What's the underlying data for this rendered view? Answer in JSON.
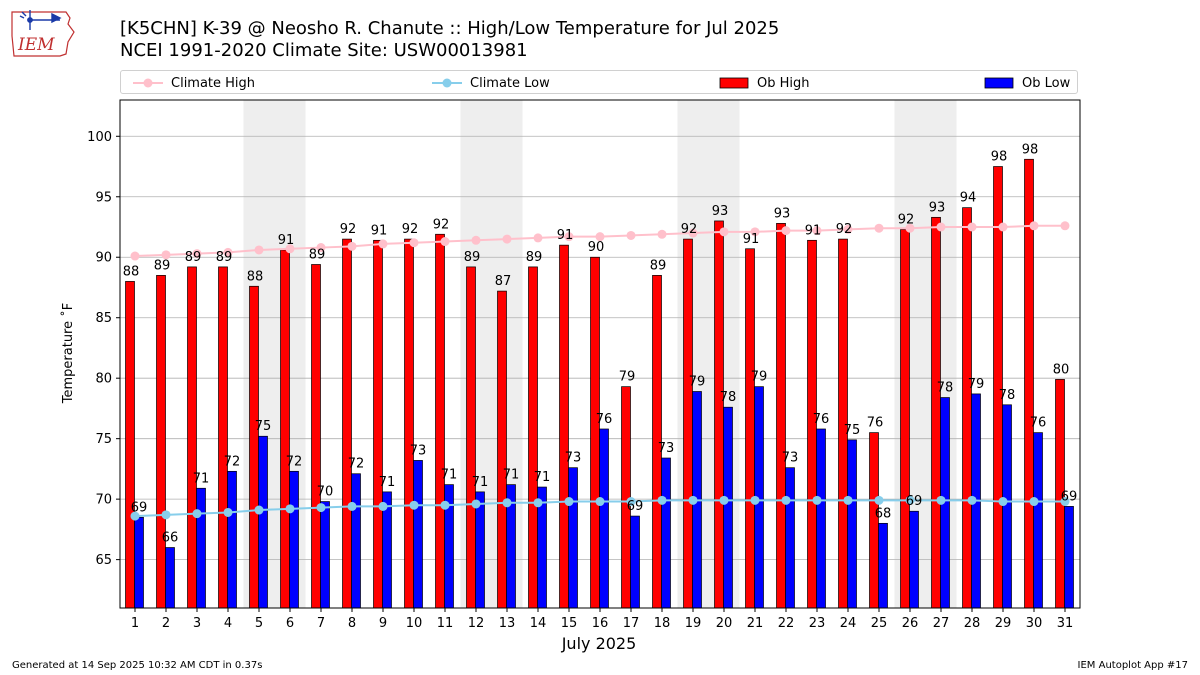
{
  "header": {
    "logo_text": "IEM",
    "title_line1": "[K5CHN] K-39 @ Neosho R. Chanute :: High/Low Temperature for Jul 2025",
    "title_line2": "NCEI 1991-2020 Climate Site: USW00013981"
  },
  "footer": {
    "left": "Generated at 14 Sep 2025 10:32 AM CDT in 0.37s",
    "right": "IEM Autoplot App #17"
  },
  "colors": {
    "ob_high": "#ff0000",
    "ob_low": "#0000ff",
    "climate_high": "#ffc0cb",
    "climate_low": "#87ceeb",
    "weekend_band": "#eeeeee",
    "grid": "#b0b0b0"
  },
  "chart_data": {
    "type": "bar",
    "title": "[K5CHN] K-39 @ Neosho R. Chanute :: High/Low Temperature for Jul 2025",
    "subtitle": "NCEI 1991-2020 Climate Site: USW00013981",
    "xlabel": "July 2025",
    "ylabel": "Temperature ˚F",
    "ylim": [
      61,
      103
    ],
    "yticks": [
      65,
      70,
      75,
      80,
      85,
      90,
      95,
      100
    ],
    "grid": "horizontal",
    "legend_position": "top",
    "categories": [
      "1",
      "2",
      "3",
      "4",
      "5",
      "6",
      "7",
      "8",
      "9",
      "10",
      "11",
      "12",
      "13",
      "14",
      "15",
      "16",
      "17",
      "18",
      "19",
      "20",
      "21",
      "22",
      "23",
      "24",
      "25",
      "26",
      "27",
      "28",
      "29",
      "30",
      "31"
    ],
    "shaded_days": [
      [
        5,
        6
      ],
      [
        12,
        13
      ],
      [
        19,
        20
      ],
      [
        26,
        27
      ]
    ],
    "series": [
      {
        "name": "Ob High",
        "kind": "bar",
        "values": [
          88,
          88.5,
          89.2,
          89.2,
          87.6,
          90.6,
          89.4,
          91.5,
          91.4,
          91.5,
          91.9,
          89.2,
          87.2,
          89.2,
          91.0,
          90.0,
          79.3,
          88.5,
          91.5,
          93.0,
          90.7,
          92.8,
          91.4,
          91.5,
          75.5,
          92.3,
          93.3,
          94.1,
          97.5,
          98.1,
          79.9
        ],
        "labels": [
          "88",
          "89",
          "89",
          "89",
          "88",
          "91",
          "89",
          "92",
          "91",
          "92",
          "92",
          "89",
          "87",
          "89",
          "91",
          "90",
          "79",
          "89",
          "92",
          "93",
          "91",
          "93",
          "91",
          "92",
          "76",
          "92",
          "93",
          "94",
          "98",
          "98",
          "80"
        ]
      },
      {
        "name": "Ob Low",
        "kind": "bar",
        "values": [
          68.5,
          66.0,
          70.9,
          72.3,
          75.2,
          72.3,
          69.8,
          72.1,
          70.6,
          73.2,
          71.2,
          70.6,
          71.2,
          71.0,
          72.6,
          75.8,
          68.6,
          73.4,
          78.9,
          77.6,
          79.3,
          72.6,
          75.8,
          74.9,
          68.0,
          69.0,
          78.4,
          78.7,
          77.8,
          75.5,
          69.4
        ],
        "labels": [
          "69",
          "66",
          "71",
          "72",
          "75",
          "72",
          "70",
          "72",
          "71",
          "73",
          "71",
          "71",
          "71",
          "71",
          "73",
          "76",
          "69",
          "73",
          "79",
          "78",
          "79",
          "73",
          "76",
          "75",
          "68",
          "69",
          "78",
          "79",
          "78",
          "76",
          "69"
        ]
      },
      {
        "name": "Climate High",
        "kind": "line",
        "values": [
          90.1,
          90.2,
          90.3,
          90.4,
          90.6,
          90.7,
          90.8,
          90.9,
          91.1,
          91.2,
          91.3,
          91.4,
          91.5,
          91.6,
          91.7,
          91.7,
          91.8,
          91.9,
          92.0,
          92.1,
          92.1,
          92.2,
          92.2,
          92.3,
          92.4,
          92.4,
          92.5,
          92.5,
          92.5,
          92.6,
          92.6
        ]
      },
      {
        "name": "Climate Low",
        "kind": "line",
        "values": [
          68.6,
          68.7,
          68.8,
          68.9,
          69.1,
          69.2,
          69.3,
          69.4,
          69.4,
          69.5,
          69.5,
          69.6,
          69.7,
          69.7,
          69.8,
          69.8,
          69.8,
          69.9,
          69.9,
          69.9,
          69.9,
          69.9,
          69.9,
          69.9,
          69.9,
          69.9,
          69.9,
          69.9,
          69.8,
          69.8,
          69.8
        ]
      }
    ]
  }
}
